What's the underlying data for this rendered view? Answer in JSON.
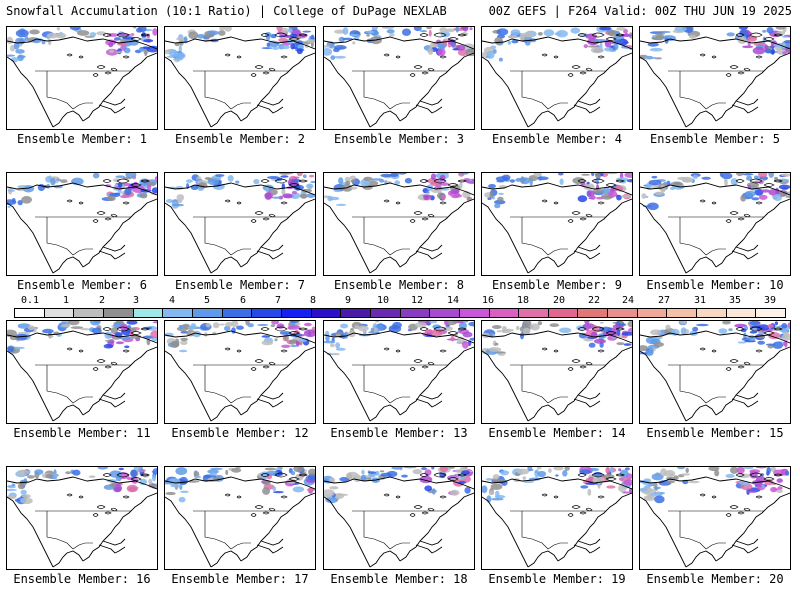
{
  "header": {
    "title": "Snowfall Accumulation (10:1 Ratio) | College of DuPage NEXLAB",
    "run_info": "00Z GEFS | F264 Valid: 00Z THU JUN 19 2025"
  },
  "members": [
    {
      "label": "Ensemble Member: 1"
    },
    {
      "label": "Ensemble Member: 2"
    },
    {
      "label": "Ensemble Member: 3"
    },
    {
      "label": "Ensemble Member: 4"
    },
    {
      "label": "Ensemble Member: 5"
    },
    {
      "label": "Ensemble Member: 6"
    },
    {
      "label": "Ensemble Member: 7"
    },
    {
      "label": "Ensemble Member: 8"
    },
    {
      "label": "Ensemble Member: 9"
    },
    {
      "label": "Ensemble Member: 10"
    },
    {
      "label": "Ensemble Member: 11"
    },
    {
      "label": "Ensemble Member: 12"
    },
    {
      "label": "Ensemble Member: 13"
    },
    {
      "label": "Ensemble Member: 14"
    },
    {
      "label": "Ensemble Member: 15"
    },
    {
      "label": "Ensemble Member: 16"
    },
    {
      "label": "Ensemble Member: 17"
    },
    {
      "label": "Ensemble Member: 18"
    },
    {
      "label": "Ensemble Member: 19"
    },
    {
      "label": "Ensemble Member: 20"
    }
  ],
  "colorbar": {
    "labels": [
      "0.1",
      "1",
      "2",
      "3",
      "4",
      "5",
      "6",
      "7",
      "8",
      "9",
      "10",
      "12",
      "14",
      "16",
      "18",
      "20",
      "22",
      "24",
      "27",
      "31",
      "35",
      "39"
    ],
    "colors": [
      "#ffffff",
      "#e0e0e0",
      "#bdbdbd",
      "#8f8f8f",
      "#9fe8e8",
      "#84b8f0",
      "#5f9ae8",
      "#3c6fe4",
      "#2648e8",
      "#1620f0",
      "#2a10c8",
      "#4a1aa8",
      "#6a2ab0",
      "#8a3cc0",
      "#a84ad0",
      "#c858d8",
      "#d860c0",
      "#e070a8",
      "#e06890",
      "#e07878",
      "#e89090",
      "#f0a898",
      "#f5c0a8",
      "#f8d8c0",
      "#fbe8d8",
      "#fdf3ea"
    ]
  }
}
